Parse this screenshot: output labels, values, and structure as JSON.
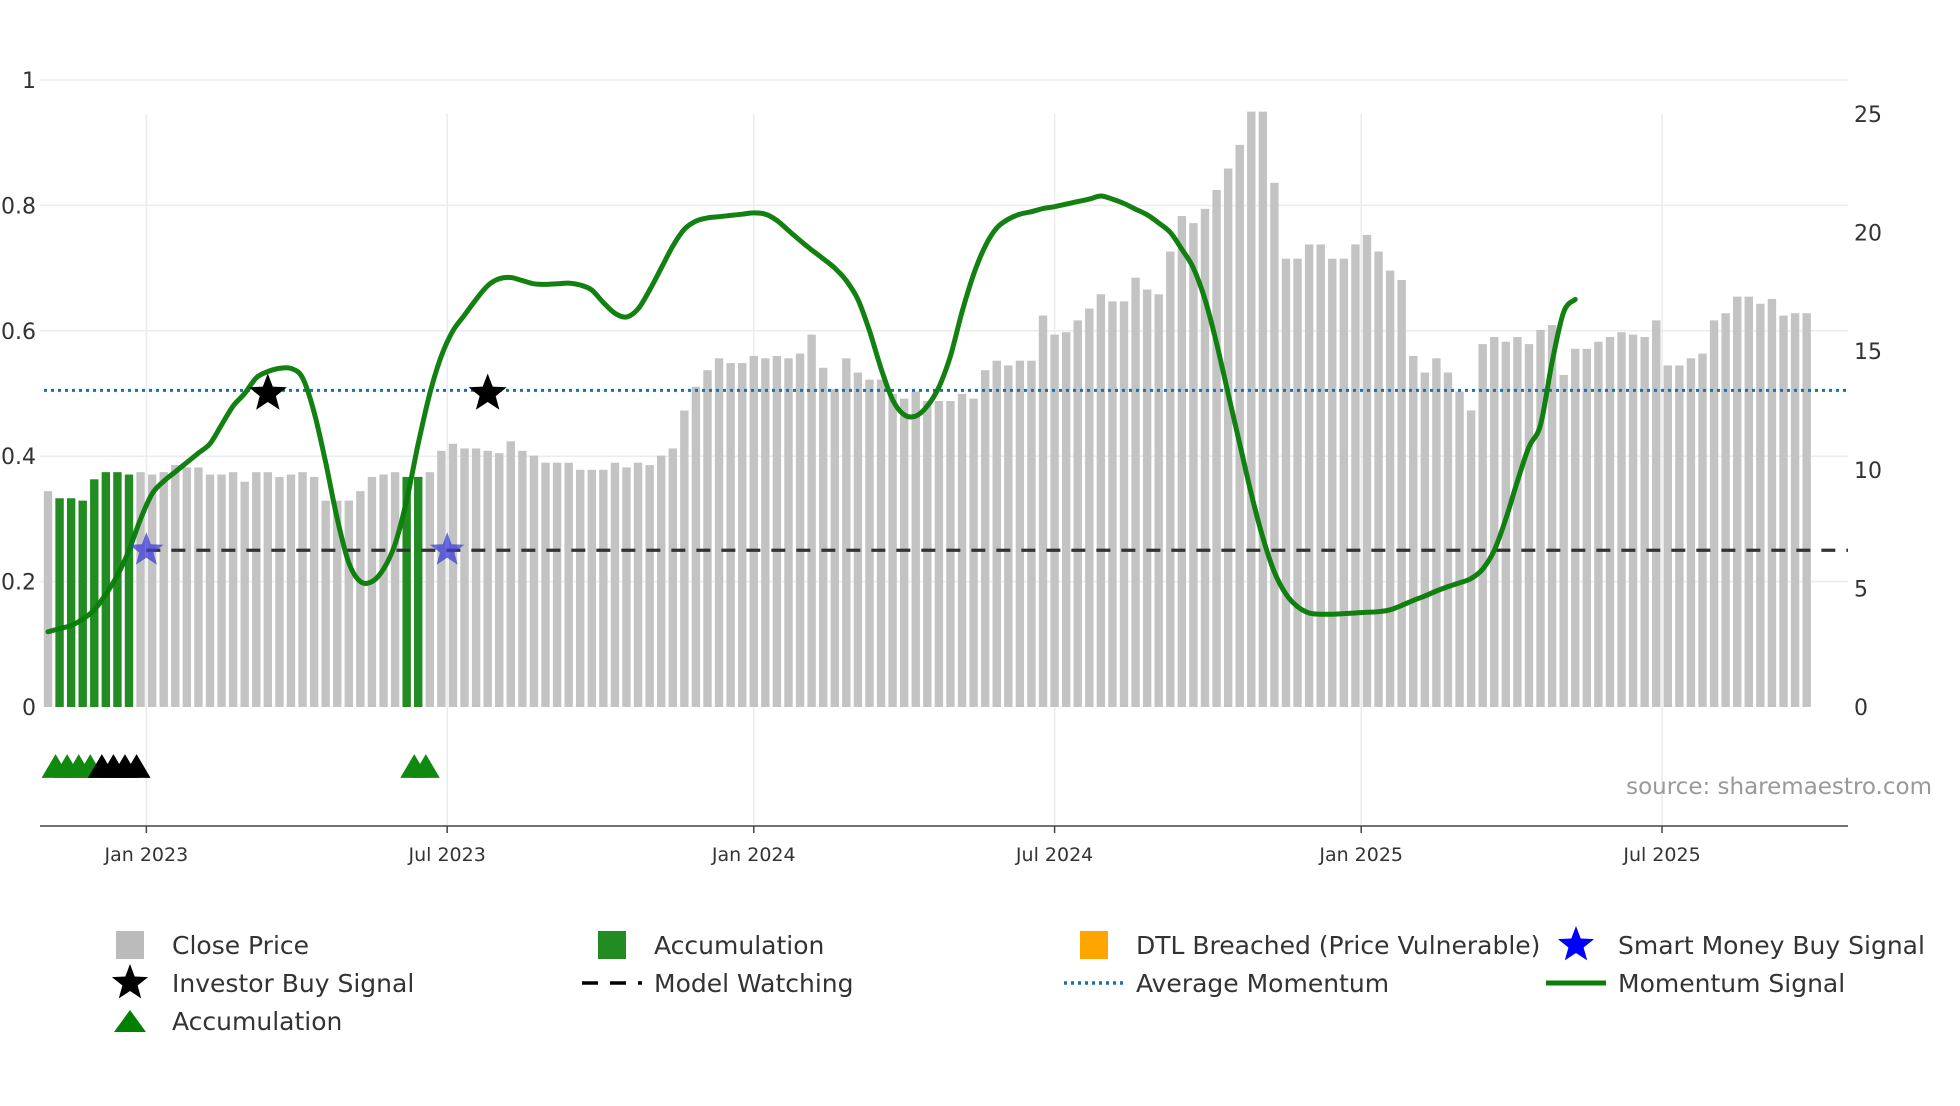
{
  "chart_data": {
    "type": "bar",
    "source": "source: sharemaestro.com",
    "left_axis": {
      "ticks": [
        "0",
        "0.2",
        "0.4",
        "0.6",
        "0.8",
        "1"
      ],
      "ylim": [
        0,
        1
      ]
    },
    "right_axis": {
      "ticks": [
        "0",
        "5",
        "10",
        "15",
        "20",
        "25"
      ],
      "ylim": [
        0,
        26
      ]
    },
    "x_labels": [
      {
        "label": "Jan 2023",
        "week": 8.5
      },
      {
        "label": "Jul 2023",
        "week": 34.5
      },
      {
        "label": "Jan 2024",
        "week": 61
      },
      {
        "label": "Jul 2024",
        "week": 87
      },
      {
        "label": "Jan 2025",
        "week": 113.5
      },
      {
        "label": "Jul 2025",
        "week": 139.5
      }
    ],
    "close_price": [
      9.1,
      8.8,
      8.8,
      8.7,
      9.6,
      9.9,
      9.9,
      9.8,
      9.9,
      9.8,
      9.9,
      10.2,
      10.1,
      10.1,
      9.8,
      9.8,
      9.9,
      9.5,
      9.9,
      9.9,
      9.7,
      9.8,
      9.9,
      9.7,
      8.7,
      8.7,
      8.7,
      9.1,
      9.7,
      9.8,
      9.9,
      9.7,
      9.7,
      9.9,
      10.8,
      11.1,
      10.9,
      10.9,
      10.8,
      10.7,
      11.2,
      10.8,
      10.6,
      10.3,
      10.3,
      10.3,
      10.0,
      10.0,
      10.0,
      10.3,
      10.1,
      10.3,
      10.2,
      10.6,
      10.9,
      12.5,
      13.5,
      14.2,
      14.7,
      14.5,
      14.5,
      14.8,
      14.7,
      14.8,
      14.7,
      14.9,
      15.7,
      14.3,
      13.4,
      14.7,
      14.1,
      13.8,
      13.8,
      13.2,
      13.0,
      13.3,
      12.9,
      12.9,
      12.9,
      13.2,
      13.0,
      14.2,
      14.6,
      14.4,
      14.6,
      14.6,
      16.5,
      15.7,
      15.8,
      16.3,
      16.8,
      17.4,
      17.1,
      17.1,
      18.1,
      17.6,
      17.4,
      19.2,
      20.7,
      20.4,
      21.0,
      21.8,
      22.7,
      23.7,
      25.1,
      25.1,
      22.1,
      18.9,
      18.9,
      19.5,
      19.5,
      18.9,
      18.9,
      19.5,
      19.9,
      19.2,
      18.4,
      18.0,
      14.8,
      14.1,
      14.7,
      14.1,
      13.3,
      12.5,
      15.3,
      15.6,
      15.4,
      15.6,
      15.3,
      15.9,
      16.1,
      14.0,
      15.1,
      15.1,
      15.4,
      15.6,
      15.8,
      15.7,
      15.6,
      16.3,
      14.4,
      14.4,
      14.7,
      14.9,
      16.3,
      16.6,
      17.3,
      17.3,
      17.0,
      17.2,
      16.5,
      16.6,
      16.6
    ],
    "accumulation_weeks": [
      1,
      2,
      3,
      4,
      5,
      6,
      7,
      31,
      32
    ],
    "momentum_signal": [
      0.12,
      0.125,
      0.13,
      0.14,
      0.155,
      0.18,
      0.21,
      0.25,
      0.3,
      0.34,
      0.36,
      0.375,
      0.39,
      0.405,
      0.42,
      0.45,
      0.48,
      0.5,
      0.525,
      0.535,
      0.54,
      0.54,
      0.525,
      0.47,
      0.39,
      0.3,
      0.23,
      0.2,
      0.2,
      0.22,
      0.26,
      0.33,
      0.42,
      0.5,
      0.56,
      0.6,
      0.625,
      0.65,
      0.672,
      0.683,
      0.685,
      0.68,
      0.675,
      0.674,
      0.675,
      0.676,
      0.673,
      0.665,
      0.645,
      0.628,
      0.622,
      0.635,
      0.665,
      0.7,
      0.735,
      0.762,
      0.775,
      0.78,
      0.782,
      0.784,
      0.786,
      0.788,
      0.786,
      0.776,
      0.76,
      0.744,
      0.729,
      0.715,
      0.7,
      0.68,
      0.65,
      0.6,
      0.54,
      0.49,
      0.466,
      0.464,
      0.48,
      0.51,
      0.56,
      0.63,
      0.69,
      0.735,
      0.764,
      0.778,
      0.786,
      0.79,
      0.795,
      0.798,
      0.802,
      0.806,
      0.81,
      0.815,
      0.81,
      0.803,
      0.794,
      0.785,
      0.772,
      0.757,
      0.73,
      0.7,
      0.65,
      0.58,
      0.5,
      0.42,
      0.34,
      0.27,
      0.215,
      0.18,
      0.16,
      0.15,
      0.148,
      0.148,
      0.149,
      0.15,
      0.151,
      0.152,
      0.155,
      0.162,
      0.17,
      0.177,
      0.185,
      0.192,
      0.198,
      0.205,
      0.22,
      0.25,
      0.3,
      0.36,
      0.415,
      0.45,
      0.55,
      0.63,
      0.65
    ],
    "momentum_start_week": 0,
    "average_momentum": 0.505,
    "model_watching": {
      "level": 0.25,
      "start_week": 8.5
    },
    "investor_buy_signals": [
      {
        "week": 19,
        "value": 0.5
      },
      {
        "week": 38,
        "value": 0.5
      }
    ],
    "smart_money_buy_signals": [
      {
        "week": 8.5,
        "value": 0.25
      },
      {
        "week": 34.5,
        "value": 0.25
      }
    ],
    "accumulation_markers_green": [
      1,
      2,
      3,
      4,
      32,
      33
    ],
    "accumulation_markers_black": [
      5,
      6,
      7,
      8
    ],
    "legend": [
      {
        "label": "Close Price",
        "color": "#bbbbbb",
        "kind": "square"
      },
      {
        "label": "Accumulation",
        "color": "#228b22",
        "kind": "square"
      },
      {
        "label": "DTL Breached (Price Vulnerable)",
        "color": "#ffa500",
        "kind": "square"
      },
      {
        "label": "Smart Money Buy Signal",
        "color": "#0000ff",
        "kind": "star"
      },
      {
        "label": "Investor Buy Signal",
        "color": "#000000",
        "kind": "star"
      },
      {
        "label": "Model Watching",
        "color": "#000000",
        "kind": "dash"
      },
      {
        "label": "Average Momentum",
        "color": "#1f6fa8",
        "kind": "dot"
      },
      {
        "label": "Momentum Signal",
        "color": "#0a7d0a",
        "kind": "line"
      },
      {
        "label": "Accumulation",
        "color": "#008000",
        "kind": "triangle"
      }
    ]
  }
}
